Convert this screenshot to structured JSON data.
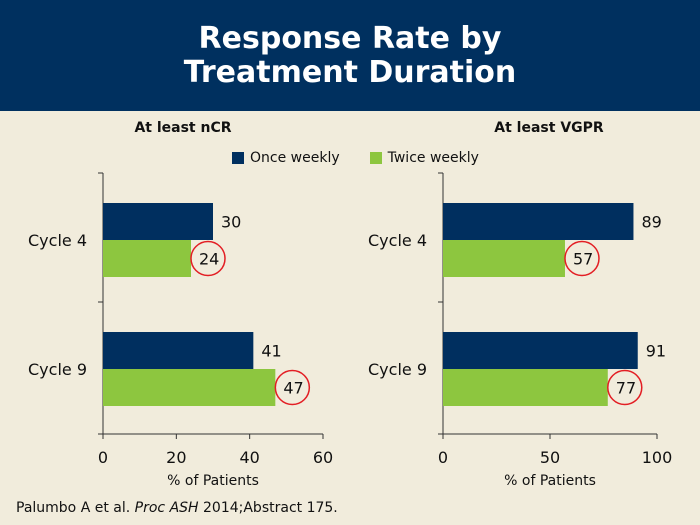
{
  "header": {
    "title_line1": "Response Rate by",
    "title_line2": "Treatment Duration"
  },
  "legend": {
    "items": [
      {
        "label": "Once weekly",
        "color": "#002f5f"
      },
      {
        "label": "Twice weekly",
        "color": "#8dc63f"
      }
    ]
  },
  "annotation_color": "#e31e24",
  "citation": {
    "authors": "Palumbo A et al. ",
    "journal": "Proc ASH",
    "rest": " 2014;Abstract 175."
  },
  "chart_data": [
    {
      "type": "bar",
      "orientation": "horizontal",
      "title": "At least nCR",
      "categories": [
        "Cycle 4",
        "Cycle 9"
      ],
      "series": [
        {
          "name": "Once weekly",
          "values": [
            30,
            41
          ]
        },
        {
          "name": "Twice weekly",
          "values": [
            24,
            47
          ]
        }
      ],
      "circled": [
        [
          false,
          true
        ],
        [
          false,
          true
        ]
      ],
      "xlabel": "% of Patients",
      "xlim": [
        0,
        60
      ],
      "xticks": [
        0,
        20,
        40,
        60
      ]
    },
    {
      "type": "bar",
      "orientation": "horizontal",
      "title": "At least VGPR",
      "categories": [
        "Cycle 4",
        "Cycle 9"
      ],
      "series": [
        {
          "name": "Once weekly",
          "values": [
            89,
            91
          ]
        },
        {
          "name": "Twice weekly",
          "values": [
            57,
            77
          ]
        }
      ],
      "circled": [
        [
          false,
          true
        ],
        [
          false,
          true
        ]
      ],
      "xlabel": "% of Patients",
      "xlim": [
        0,
        100
      ],
      "xticks": [
        0,
        50,
        100
      ]
    }
  ]
}
